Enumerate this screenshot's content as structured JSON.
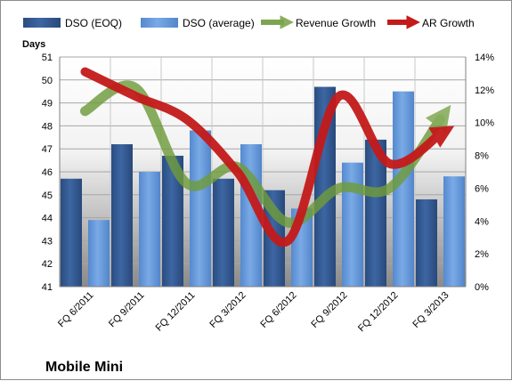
{
  "chart_data": {
    "type": "bar",
    "title": "",
    "company_label": "Mobile Mini",
    "categories": [
      "FQ 6/2011",
      "FQ 9/2011",
      "FQ 12/2011",
      "FQ 3/2012",
      "FQ 6/2012",
      "FQ 9/2012",
      "FQ 12/2012",
      "FQ 3/2013"
    ],
    "y_left": {
      "label": "Days",
      "min": 41,
      "max": 51,
      "step": 1
    },
    "y_right": {
      "label": "",
      "min": 0,
      "max": 14,
      "step": 2,
      "format": "percent"
    },
    "bar_series": [
      {
        "name": "DSO (EOQ)",
        "color": "#2e5387",
        "axis": "left",
        "values": [
          45.7,
          47.2,
          46.7,
          45.7,
          45.2,
          49.7,
          47.4,
          44.8
        ]
      },
      {
        "name": "DSO (average)",
        "color": "#5d93d6",
        "axis": "left",
        "values": [
          43.9,
          46.0,
          47.8,
          47.2,
          44.4,
          46.4,
          49.5,
          45.8
        ]
      }
    ],
    "line_series": [
      {
        "name": "Revenue Growth",
        "color": "#6f9c3c",
        "axis": "right",
        "unit": "%",
        "values": [
          10.7,
          12.1,
          6.3,
          7.3,
          3.9,
          6.0,
          6.0,
          10.2
        ]
      },
      {
        "name": "AR Growth",
        "color": "#c41a1a",
        "axis": "right",
        "unit": "%",
        "values": [
          13.1,
          11.6,
          10.2,
          7.0,
          2.8,
          11.6,
          7.5,
          9.3
        ]
      }
    ],
    "legend_position": "top",
    "grid": true
  }
}
